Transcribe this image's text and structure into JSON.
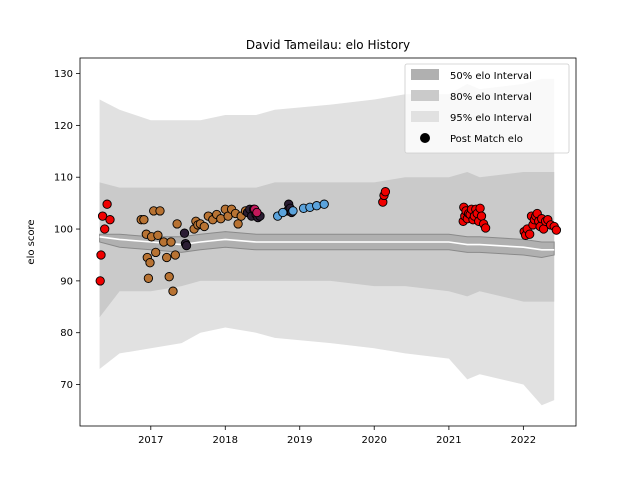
{
  "chart_data": {
    "type": "scatter",
    "title": "David Tameilau: elo History",
    "xlabel": "",
    "ylabel": "elo score",
    "xlim": [
      "2016-01-20",
      "2022-09-16"
    ],
    "ylim": [
      62,
      133
    ],
    "x_ticks": [
      "2017",
      "2018",
      "2019",
      "2020",
      "2021",
      "2022"
    ],
    "y_ticks": [
      70,
      80,
      90,
      100,
      110,
      120,
      130
    ],
    "grid": false,
    "legend_position": "top-right",
    "legend": [
      {
        "label": "50% elo Interval",
        "kind": "band",
        "color": "#b0b0b0"
      },
      {
        "label": "80% elo Interval",
        "kind": "band",
        "color": "#cacaca"
      },
      {
        "label": "95% elo Interval",
        "kind": "band",
        "color": "#e1e1e1"
      },
      {
        "label": "Post Match elo",
        "kind": "marker",
        "color": "#000000"
      }
    ],
    "intervals": {
      "dates": [
        "2016-04-25",
        "2016-08-01",
        "2017-01-01",
        "2017-06-01",
        "2017-09-01",
        "2018-01-01",
        "2018-06-01",
        "2018-09-01",
        "2019-06-01",
        "2020-01-01",
        "2020-06-01",
        "2021-01-01",
        "2021-04-01",
        "2021-06-01",
        "2022-01-01",
        "2022-04-01",
        "2022-06-01"
      ],
      "center": [
        98.5,
        98,
        97.5,
        97,
        97.5,
        98,
        97.5,
        97.5,
        97.5,
        97.5,
        97.5,
        97.5,
        97,
        97,
        96.5,
        96,
        96
      ],
      "band50": [
        [
          97.5,
          99
        ],
        [
          96.5,
          99
        ],
        [
          96,
          98.5
        ],
        [
          95.5,
          98.5
        ],
        [
          96,
          99
        ],
        [
          96.5,
          99.5
        ],
        [
          96,
          99
        ],
        [
          96,
          99
        ],
        [
          96,
          99
        ],
        [
          96,
          99
        ],
        [
          96,
          99
        ],
        [
          96,
          99
        ],
        [
          95.5,
          98.5
        ],
        [
          95.5,
          98.5
        ],
        [
          95,
          98
        ],
        [
          94.5,
          97.5
        ],
        [
          95,
          97.5
        ]
      ],
      "band80": [
        [
          83,
          109
        ],
        [
          88,
          108
        ],
        [
          88,
          108
        ],
        [
          89,
          108
        ],
        [
          90,
          108
        ],
        [
          90,
          108
        ],
        [
          90,
          108
        ],
        [
          90,
          109
        ],
        [
          90,
          109
        ],
        [
          89,
          109
        ],
        [
          89,
          110
        ],
        [
          88,
          110
        ],
        [
          87,
          111
        ],
        [
          88,
          110
        ],
        [
          86,
          111
        ],
        [
          86,
          111
        ],
        [
          86,
          111
        ]
      ],
      "band95": [
        [
          73,
          125
        ],
        [
          76,
          123
        ],
        [
          77,
          121
        ],
        [
          78,
          121
        ],
        [
          80,
          121
        ],
        [
          81,
          122
        ],
        [
          80,
          122
        ],
        [
          79,
          123
        ],
        [
          78,
          124
        ],
        [
          77,
          125
        ],
        [
          76,
          126
        ],
        [
          75,
          126
        ],
        [
          71,
          128
        ],
        [
          72,
          127
        ],
        [
          70,
          128
        ],
        [
          66,
          129
        ],
        [
          67,
          129
        ]
      ]
    },
    "series": [
      {
        "color": "#f00000",
        "points": [
          [
            "2016-04-28",
            90
          ],
          [
            "2016-05-02",
            95
          ],
          [
            "2016-05-10",
            102.5
          ],
          [
            "2016-05-20",
            100
          ],
          [
            "2016-06-01",
            104.8
          ],
          [
            "2016-06-15",
            101.8
          ],
          [
            "2020-02-12",
            105.2
          ],
          [
            "2020-02-18",
            106.5
          ],
          [
            "2020-02-25",
            107.2
          ],
          [
            "2021-03-12",
            101.5
          ],
          [
            "2021-03-15",
            104.2
          ],
          [
            "2021-03-20",
            102.5
          ],
          [
            "2021-03-26",
            103.5
          ],
          [
            "2021-04-01",
            102
          ],
          [
            "2021-04-08",
            103
          ],
          [
            "2021-04-15",
            102.8
          ],
          [
            "2021-04-22",
            103.8
          ],
          [
            "2021-04-29",
            101.8
          ],
          [
            "2021-05-06",
            102.5
          ],
          [
            "2021-05-13",
            103.8
          ],
          [
            "2021-05-20",
            103
          ],
          [
            "2021-05-27",
            101.5
          ],
          [
            "2021-06-03",
            104
          ],
          [
            "2021-06-10",
            102.5
          ],
          [
            "2021-06-20",
            101
          ],
          [
            "2021-06-30",
            100.2
          ],
          [
            "2022-01-05",
            99.5
          ],
          [
            "2022-01-12",
            98.8
          ],
          [
            "2022-01-20",
            100
          ],
          [
            "2022-02-01",
            99
          ],
          [
            "2022-02-10",
            102.5
          ],
          [
            "2022-02-17",
            100.8
          ],
          [
            "2022-02-24",
            101.8
          ],
          [
            "2022-03-03",
            102.5
          ],
          [
            "2022-03-10",
            103
          ],
          [
            "2022-03-17",
            101.5
          ],
          [
            "2022-03-24",
            100.5
          ],
          [
            "2022-04-01",
            102
          ],
          [
            "2022-04-10",
            100
          ],
          [
            "2022-04-20",
            101.5
          ],
          [
            "2022-05-01",
            101.8
          ],
          [
            "2022-05-15",
            100.8
          ],
          [
            "2022-06-01",
            100.5
          ],
          [
            "2022-06-12",
            99.8
          ]
        ]
      },
      {
        "color": "#b87333",
        "points": [
          [
            "2016-11-15",
            101.8
          ],
          [
            "2016-11-28",
            101.8
          ],
          [
            "2016-12-10",
            99
          ],
          [
            "2016-12-15",
            94.5
          ],
          [
            "2016-12-20",
            90.5
          ],
          [
            "2016-12-28",
            93.5
          ],
          [
            "2017-01-05",
            98.5
          ],
          [
            "2017-01-15",
            103.5
          ],
          [
            "2017-01-25",
            95.5
          ],
          [
            "2017-02-05",
            98.8
          ],
          [
            "2017-02-15",
            103.5
          ],
          [
            "2017-03-05",
            97.5
          ],
          [
            "2017-03-20",
            94.5
          ],
          [
            "2017-04-01",
            90.8
          ],
          [
            "2017-04-10",
            97.5
          ],
          [
            "2017-04-20",
            88
          ],
          [
            "2017-05-01",
            95
          ],
          [
            "2017-05-10",
            101
          ],
          [
            "2017-08-01",
            100
          ],
          [
            "2017-08-10",
            101.5
          ],
          [
            "2017-08-20",
            100.8
          ],
          [
            "2017-09-01",
            101
          ],
          [
            "2017-09-20",
            100.5
          ],
          [
            "2017-10-10",
            102.5
          ],
          [
            "2017-11-01",
            101.8
          ],
          [
            "2017-11-20",
            102.8
          ],
          [
            "2017-12-10",
            102
          ],
          [
            "2018-01-01",
            103.8
          ],
          [
            "2018-01-15",
            102.5
          ],
          [
            "2018-02-01",
            103.8
          ],
          [
            "2018-02-20",
            103
          ],
          [
            "2018-03-05",
            101
          ],
          [
            "2018-03-20",
            102.5
          ],
          [
            "2018-04-10",
            103.5
          ]
        ]
      },
      {
        "color": "#2b1d33",
        "points": [
          [
            "2017-06-15",
            99.2
          ],
          [
            "2017-06-20",
            97.2
          ],
          [
            "2017-06-25",
            96.8
          ],
          [
            "2018-04-20",
            103.2
          ],
          [
            "2018-05-01",
            103.8
          ],
          [
            "2018-05-10",
            102.5
          ],
          [
            "2018-05-20",
            103.8
          ],
          [
            "2018-06-01",
            102.8
          ],
          [
            "2018-06-10",
            102.2
          ],
          [
            "2018-06-20",
            102.5
          ],
          [
            "2018-11-01",
            103.5
          ],
          [
            "2018-11-08",
            104.8
          ],
          [
            "2018-11-15",
            104
          ],
          [
            "2018-11-22",
            103.2
          ]
        ]
      },
      {
        "color": "#5ba3dc",
        "points": [
          [
            "2018-09-15",
            102.5
          ],
          [
            "2018-10-10",
            103.2
          ],
          [
            "2018-11-29",
            103.5
          ],
          [
            "2019-01-20",
            104
          ],
          [
            "2019-02-20",
            104.2
          ],
          [
            "2019-03-25",
            104.5
          ],
          [
            "2019-05-01",
            104.8
          ]
        ]
      },
      {
        "color": "#c2185b",
        "points": [
          [
            "2018-05-25",
            103.8
          ],
          [
            "2018-06-05",
            103.2
          ]
        ]
      }
    ]
  }
}
